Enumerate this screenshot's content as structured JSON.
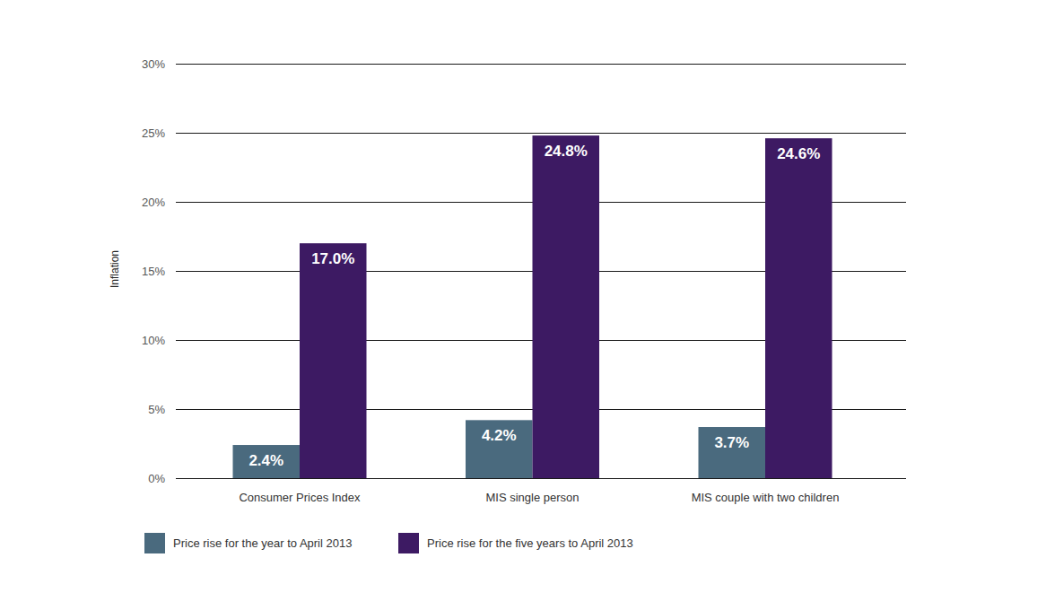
{
  "chart_data": {
    "type": "bar",
    "y_label": "Inflation",
    "categories": [
      "Consumer Prices Index",
      "MIS single person",
      "MIS couple with two children"
    ],
    "series": [
      {
        "name": "Price rise for the year to April 2013",
        "color": "#4a6a7e",
        "values": [
          2.4,
          4.2,
          3.7
        ],
        "value_labels": [
          "2.4%",
          "4.2%",
          "3.7%"
        ]
      },
      {
        "name": "Price rise for the five years to April 2013",
        "color": "#3d1a63",
        "values": [
          17.0,
          24.8,
          24.6
        ],
        "value_labels": [
          "17.0%",
          "24.8%",
          "24.6%"
        ]
      }
    ],
    "ylim": [
      0,
      30
    ],
    "yticks": [
      {
        "value": 0,
        "label": "0%"
      },
      {
        "value": 5,
        "label": "5%"
      },
      {
        "value": 10,
        "label": "10%"
      },
      {
        "value": 15,
        "label": "15%"
      },
      {
        "value": 20,
        "label": "20%"
      },
      {
        "value": 25,
        "label": "25%"
      },
      {
        "value": 30,
        "label": "30%"
      }
    ],
    "grid": true,
    "legend": "bottom-left",
    "data_labels": true
  }
}
